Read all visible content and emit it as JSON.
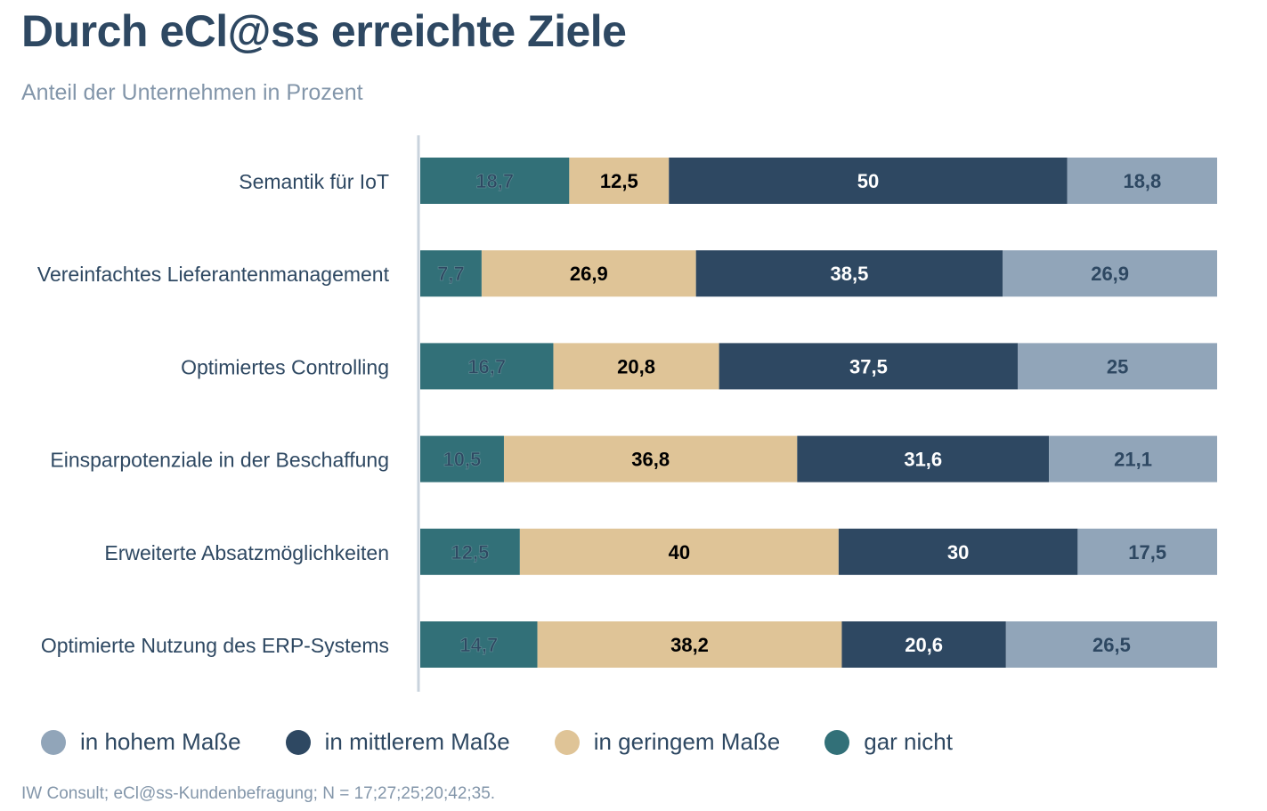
{
  "chart_data": {
    "type": "bar",
    "orientation": "horizontal",
    "stacked": true,
    "title": "Durch eCl@ss erreichte Ziele",
    "subtitle": "Anteil der Unternehmen in Prozent",
    "categories": [
      "Semantik für IoT",
      "Vereinfachtes Lieferantenmanagement",
      "Optimiertes Controlling",
      "Einsparpotenziale in der Beschaffung",
      "Erweiterte Absatzmöglichkeiten",
      "Optimierte Nutzung des ERP-Systems"
    ],
    "series": [
      {
        "name": "gar nicht",
        "color": "#327078",
        "label_color": "#2e4862",
        "values": [
          18.7,
          7.7,
          16.7,
          10.5,
          12.5,
          14.7
        ],
        "labels": [
          "18,7",
          "7,7",
          "16,7",
          "10,5",
          "12,5",
          "14,7"
        ]
      },
      {
        "name": "in geringem Maße",
        "color": "#dfc497",
        "label_color": "#000000",
        "values": [
          12.5,
          26.9,
          20.8,
          36.8,
          40,
          38.2
        ],
        "labels": [
          "12,5",
          "26,9",
          "20,8",
          "36,8",
          "40",
          "38,2"
        ]
      },
      {
        "name": "in mittlerem Maße",
        "color": "#2e4862",
        "label_color": "#ffffff",
        "values": [
          50,
          38.5,
          37.5,
          31.6,
          30,
          20.6
        ],
        "labels": [
          "50",
          "38,5",
          "37,5",
          "31,6",
          "30",
          "20,6"
        ]
      },
      {
        "name": "in hohem Maße",
        "color": "#91a5b9",
        "label_color": "#2e4862",
        "values": [
          18.8,
          26.9,
          25,
          21.1,
          17.5,
          26.5
        ],
        "labels": [
          "18,8",
          "26,9",
          "25",
          "21,1",
          "17,5",
          "26,5"
        ]
      }
    ],
    "xlim": [
      0,
      100
    ],
    "grid": false,
    "legend_placement": "bottom",
    "legend_order": [
      "in hohem Maße",
      "in mittlerem Maße",
      "in geringem Maße",
      "gar nicht"
    ],
    "source": "IW Consult; eCl@ss-Kundenbefragung; N = 17;27;25;20;42;35."
  }
}
